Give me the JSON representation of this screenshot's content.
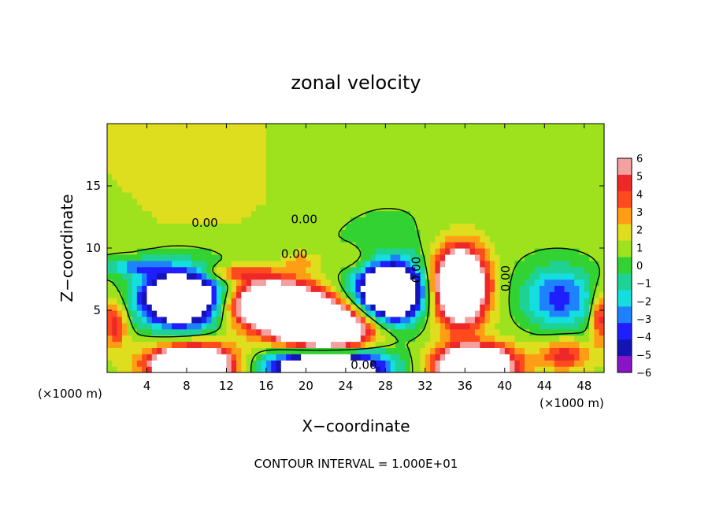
{
  "chart_data": {
    "type": "heatmap",
    "title": "zonal velocity",
    "xlabel": "X−coordinate",
    "ylabel": "Z−coordinate",
    "x_unit_label": "(×1000 m)",
    "z_unit_label": "(×1000 m)",
    "footer": "CONTOUR INTERVAL = 1.000E+01",
    "xlim": [
      0,
      50
    ],
    "ylim": [
      0,
      20
    ],
    "x_ticks": [
      4,
      8,
      12,
      16,
      20,
      24,
      28,
      32,
      36,
      40,
      44,
      48
    ],
    "x_tick_labels": [
      "4",
      "8",
      "12",
      "16",
      "20",
      "24",
      "28",
      "32",
      "36",
      "40",
      "44",
      "48"
    ],
    "y_ticks": [
      5,
      10,
      15
    ],
    "y_tick_labels": [
      "5",
      "10",
      "15"
    ],
    "colorbar": {
      "levels": [
        6,
        5,
        4,
        3,
        2,
        1,
        0,
        -1,
        -2,
        -3,
        -4,
        -5,
        -6
      ],
      "labels": [
        "6",
        "5",
        "4",
        "3",
        "2",
        "1",
        "0",
        "−1",
        "−2",
        "−3",
        "−4",
        "−5",
        "−6"
      ],
      "colors": [
        "#f4a0a0",
        "#ee2828",
        "#ff4a1e",
        "#ff9e14",
        "#dede1e",
        "#9ee21e",
        "#32d232",
        "#1ed296",
        "#14dede",
        "#1e82ff",
        "#1e1eff",
        "#1414b4",
        "#8c14c8"
      ]
    },
    "contour_labels": [
      "0.00",
      "0.00",
      "0.00",
      "0.00",
      "0.00",
      "0.00"
    ],
    "features": [
      {
        "x": 18,
        "z": 15,
        "value": 0.8
      },
      {
        "x": 28,
        "z": 16,
        "value": -0.6
      },
      {
        "x": 43,
        "z": 16,
        "value": 0.6
      },
      {
        "x": 7.5,
        "z": 6.0,
        "value": -12
      },
      {
        "x": 20,
        "z": 4.5,
        "value": 12
      },
      {
        "x": 28.5,
        "z": 6.5,
        "value": -12
      },
      {
        "x": 35.5,
        "z": 7.2,
        "value": 12
      },
      {
        "x": 45.5,
        "z": 6.0,
        "value": -4.2
      },
      {
        "x": 8.5,
        "z": 0.8,
        "value": 12
      },
      {
        "x": 22,
        "z": 0.6,
        "value": -12
      },
      {
        "x": 37,
        "z": 0.8,
        "value": 12
      },
      {
        "x": 46,
        "z": 1.5,
        "value": 3.5
      },
      {
        "x": 1,
        "z": 4,
        "value": 4
      }
    ]
  }
}
